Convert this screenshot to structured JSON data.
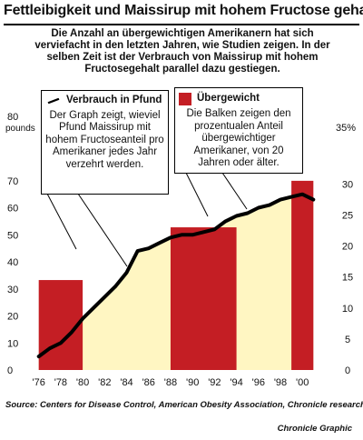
{
  "header": {
    "title": "Fettleibigkeit und Maissirup mit hohem Fructose gehalt",
    "subtitle": "Die Anzahl an übergewichtigen Amerikanern hat sich verviefacht in den letzten Jahren, wie Studien zeigen. In der selben Zeit ist der Verbrauch von Maissirup mit hohem  Fructosegehalt parallel dazu gestiegen."
  },
  "callouts": {
    "line": {
      "title": "Verbrauch in Pfund",
      "text": "Der Graph zeigt, wieviel Pfund Maissirup mit hohem Fructoseanteil pro Amerikaner  jedes Jahr verzehrt werden."
    },
    "bars": {
      "title": "Übergewicht",
      "text": "Die Balken zeigen den prozentualen Anteil übergewichtiger Amerikaner, von 20 Jahren oder älter."
    }
  },
  "footer": {
    "source": "Source: Centers for Disease Control, American Obesity Association, Chronicle research",
    "credit": "Chronicle Graphic"
  },
  "colors": {
    "bar": "#c41e24",
    "area": "#fff6c2",
    "line": "#000000",
    "background": "#ffffff"
  },
  "chart_data": {
    "type": "bar+line",
    "x_tick_labels": [
      "'76",
      "'78",
      "'80",
      "'82",
      "'84",
      "'86",
      "'88",
      "'90",
      "'92",
      "'94",
      "'96",
      "'98",
      "'00"
    ],
    "left_axis": {
      "unit_label": "pounds",
      "ticks": [
        "80",
        "70",
        "60",
        "50",
        "40",
        "30",
        "20",
        "10",
        "0"
      ],
      "range": [
        0,
        80
      ]
    },
    "right_axis": {
      "unit_label": "35%",
      "ticks": [
        "30",
        "25",
        "20",
        "15",
        "10",
        "5",
        "0"
      ],
      "range": [
        0,
        35
      ]
    },
    "bars": [
      {
        "x_start": 1976,
        "x_end": 1980,
        "value": 14.5
      },
      {
        "x_start": 1988,
        "x_end": 1994,
        "value": 23
      },
      {
        "x_start": 1999,
        "x_end": 2001,
        "value": 30.5
      }
    ],
    "line": {
      "x": [
        1976,
        1977,
        1978,
        1979,
        1980,
        1981,
        1982,
        1983,
        1984,
        1985,
        1986,
        1987,
        1988,
        1989,
        1990,
        1991,
        1992,
        1993,
        1994,
        1995,
        1996,
        1997,
        1998,
        1999,
        2000,
        2001
      ],
      "y": [
        5,
        8,
        10,
        14,
        19,
        23,
        27,
        31,
        36,
        44,
        45,
        47,
        49,
        50,
        50,
        51,
        52,
        55,
        57,
        58,
        60,
        61,
        63,
        64,
        65,
        63
      ]
    }
  }
}
